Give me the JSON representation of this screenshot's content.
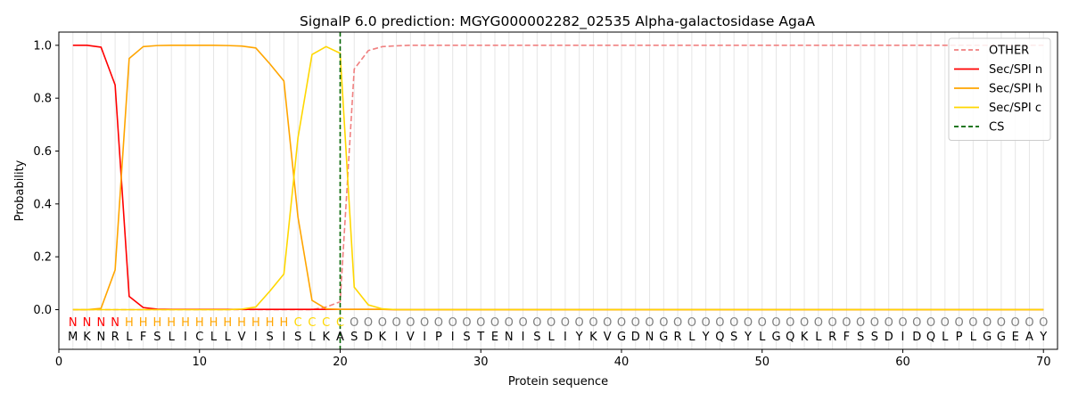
{
  "chart_data": {
    "type": "line",
    "title": "SignalP 6.0 prediction: MGYG000002282_02535 Alpha-galactosidase AgaA",
    "xlabel": "Protein sequence",
    "ylabel": "Probability",
    "xlim": [
      0,
      71
    ],
    "ylim": [
      -0.15,
      1.05
    ],
    "xticks": [
      0,
      10,
      20,
      30,
      40,
      50,
      60,
      70
    ],
    "yticks": [
      0.0,
      0.2,
      0.4,
      0.6,
      0.8,
      1.0
    ],
    "ytick_labels": [
      "0.0",
      "0.2",
      "0.4",
      "0.6",
      "0.8",
      "1.0"
    ],
    "x": [
      1,
      2,
      3,
      4,
      5,
      6,
      7,
      8,
      9,
      10,
      11,
      12,
      13,
      14,
      15,
      16,
      17,
      18,
      19,
      20,
      21,
      22,
      23,
      24,
      25,
      26,
      27,
      28,
      29,
      30,
      31,
      32,
      33,
      34,
      35,
      36,
      37,
      38,
      39,
      40,
      41,
      42,
      43,
      44,
      45,
      46,
      47,
      48,
      49,
      50,
      51,
      52,
      53,
      54,
      55,
      56,
      57,
      58,
      59,
      60,
      61,
      62,
      63,
      64,
      65,
      66,
      67,
      68,
      69,
      70
    ],
    "sequence": [
      "M",
      "K",
      "N",
      "R",
      "L",
      "F",
      "S",
      "L",
      "I",
      "C",
      "L",
      "L",
      "V",
      "I",
      "S",
      "I",
      "S",
      "L",
      "K",
      "A",
      "S",
      "D",
      "K",
      "I",
      "V",
      "I",
      "P",
      "I",
      "S",
      "T",
      "E",
      "N",
      "I",
      "S",
      "L",
      "I",
      "Y",
      "K",
      "V",
      "G",
      "D",
      "N",
      "G",
      "R",
      "L",
      "Y",
      "Q",
      "S",
      "Y",
      "L",
      "G",
      "Q",
      "K",
      "L",
      "R",
      "F",
      "S",
      "S",
      "D",
      "I",
      "D",
      "Q",
      "L",
      "P",
      "L",
      "G",
      "G",
      "E",
      "A",
      "Y"
    ],
    "region_labels": [
      "N",
      "N",
      "N",
      "N",
      "H",
      "H",
      "H",
      "H",
      "H",
      "H",
      "H",
      "H",
      "H",
      "H",
      "H",
      "H",
      "C",
      "C",
      "C",
      "C",
      "O",
      "O",
      "O",
      "O",
      "O",
      "O",
      "O",
      "O",
      "O",
      "O",
      "O",
      "O",
      "O",
      "O",
      "O",
      "O",
      "O",
      "O",
      "O",
      "O",
      "O",
      "O",
      "O",
      "O",
      "O",
      "O",
      "O",
      "O",
      "O",
      "O",
      "O",
      "O",
      "O",
      "O",
      "O",
      "O",
      "O",
      "O",
      "O",
      "O",
      "O",
      "O",
      "O",
      "O",
      "O",
      "O",
      "O",
      "O",
      "O",
      "O"
    ],
    "region_colors": {
      "N": "#ff0000",
      "H": "#ffa500",
      "C": "#ffd700",
      "O": "#808080"
    },
    "series": [
      {
        "name": "OTHER",
        "color": "#f08080",
        "dash": "dashed",
        "values": [
          0,
          0,
          0,
          0,
          0,
          0,
          0,
          0,
          0,
          0,
          0,
          0,
          0,
          0,
          0,
          0,
          0,
          0,
          0.01,
          0.03,
          0.91,
          0.98,
          0.995,
          0.998,
          1,
          1,
          1,
          1,
          1,
          1,
          1,
          1,
          1,
          1,
          1,
          1,
          1,
          1,
          1,
          1,
          1,
          1,
          1,
          1,
          1,
          1,
          1,
          1,
          1,
          1,
          1,
          1,
          1,
          1,
          1,
          1,
          1,
          1,
          1,
          1,
          1,
          1,
          1,
          1,
          1,
          1,
          1,
          1,
          1,
          1
        ]
      },
      {
        "name": "Sec/SPI n",
        "color": "#ff0000",
        "dash": "solid",
        "values": [
          1.0,
          1.0,
          0.993,
          0.85,
          0.05,
          0.008,
          0.002,
          0.001,
          0.001,
          0.001,
          0.001,
          0.001,
          0.001,
          0.001,
          0.001,
          0.001,
          0.001,
          0.001,
          0.001,
          0.001,
          0.001,
          0.001,
          0.001,
          0,
          0,
          0,
          0,
          0,
          0,
          0,
          0,
          0,
          0,
          0,
          0,
          0,
          0,
          0,
          0,
          0,
          0,
          0,
          0,
          0,
          0,
          0,
          0,
          0,
          0,
          0,
          0,
          0,
          0,
          0,
          0,
          0,
          0,
          0,
          0,
          0,
          0,
          0,
          0,
          0,
          0,
          0,
          0,
          0,
          0,
          0
        ]
      },
      {
        "name": "Sec/SPI h",
        "color": "#ffa500",
        "dash": "solid",
        "values": [
          0,
          0,
          0.005,
          0.15,
          0.95,
          0.995,
          0.999,
          1.0,
          1.0,
          1.0,
          1.0,
          0.999,
          0.997,
          0.99,
          0.93,
          0.865,
          0.35,
          0.035,
          0.003,
          0.001,
          0.001,
          0.001,
          0.001,
          0,
          0,
          0,
          0,
          0,
          0,
          0,
          0,
          0,
          0,
          0,
          0,
          0,
          0,
          0,
          0,
          0,
          0,
          0,
          0,
          0,
          0,
          0,
          0,
          0,
          0,
          0,
          0,
          0,
          0,
          0,
          0,
          0,
          0,
          0,
          0,
          0,
          0,
          0,
          0,
          0,
          0,
          0,
          0,
          0,
          0,
          0
        ]
      },
      {
        "name": "Sec/SPI c",
        "color": "#ffd700",
        "dash": "solid",
        "values": [
          0,
          0,
          0,
          0,
          0,
          0,
          0,
          0,
          0,
          0,
          0,
          0,
          0.002,
          0.01,
          0.07,
          0.135,
          0.65,
          0.965,
          0.995,
          0.97,
          0.085,
          0.018,
          0.003,
          0,
          0,
          0,
          0,
          0,
          0,
          0,
          0,
          0,
          0,
          0,
          0,
          0,
          0,
          0,
          0,
          0,
          0,
          0,
          0,
          0,
          0,
          0,
          0,
          0,
          0,
          0,
          0,
          0,
          0,
          0,
          0,
          0,
          0,
          0,
          0,
          0,
          0,
          0,
          0,
          0,
          0,
          0,
          0,
          0,
          0,
          0
        ]
      }
    ],
    "cleavage_site": {
      "name": "CS",
      "x": 20,
      "color": "#006400",
      "dash": "dashed"
    },
    "legend_position": "top-right",
    "grid": "vertical lines at each residue"
  }
}
